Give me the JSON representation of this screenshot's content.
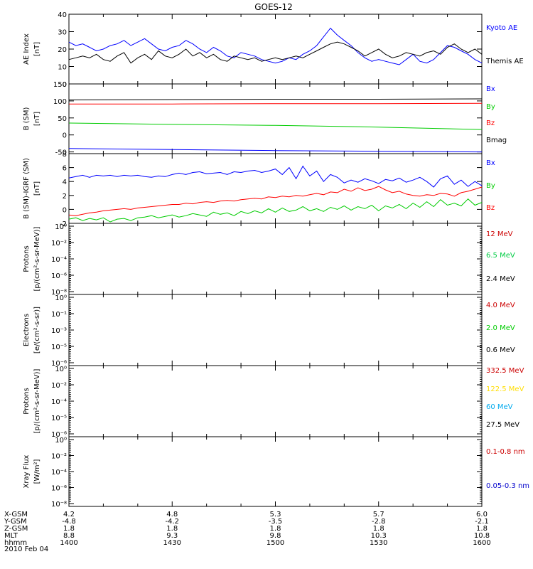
{
  "title": "GOES-12",
  "chart_data": [
    {
      "type": "line",
      "panel": "ae",
      "ylabel": "AE Index",
      "yunit": "[nT]",
      "ylim": [
        0,
        40
      ],
      "yticks": [
        0,
        10,
        20,
        30,
        40
      ],
      "legend_placement": "right",
      "x": [
        1400,
        1402,
        1404,
        1406,
        1408,
        1410,
        1412,
        1414,
        1416,
        1418,
        1420,
        1422,
        1424,
        1426,
        1428,
        1430,
        1432,
        1434,
        1436,
        1438,
        1440,
        1442,
        1444,
        1446,
        1448,
        1450,
        1452,
        1454,
        1456,
        1458,
        1500,
        1502,
        1504,
        1506,
        1508,
        1510,
        1512,
        1514,
        1516,
        1518,
        1520,
        1522,
        1524,
        1526,
        1528,
        1530,
        1532,
        1534,
        1536,
        1538,
        1540,
        1542,
        1544,
        1546,
        1548,
        1550,
        1552,
        1554,
        1556,
        1558,
        1600
      ],
      "series": [
        {
          "name": "Kyoto AE",
          "color": "#0000ff",
          "values": [
            24,
            22,
            23,
            21,
            19,
            20,
            22,
            23,
            25,
            22,
            24,
            26,
            23,
            20,
            19,
            21,
            22,
            25,
            23,
            20,
            18,
            21,
            19,
            16,
            15,
            18,
            17,
            16,
            14,
            13,
            12,
            13,
            15,
            14,
            17,
            19,
            22,
            27,
            32,
            28,
            25,
            22,
            18,
            15,
            13,
            14,
            13,
            12,
            11,
            14,
            17,
            13,
            12,
            14,
            18,
            22,
            21,
            19,
            17,
            14,
            12
          ]
        },
        {
          "name": "Themis AE",
          "color": "#000000",
          "values": [
            14,
            15,
            16,
            15,
            17,
            14,
            13,
            16,
            18,
            12,
            15,
            17,
            14,
            19,
            16,
            15,
            17,
            20,
            16,
            18,
            15,
            17,
            14,
            13,
            16,
            15,
            14,
            15,
            13,
            14,
            15,
            14,
            15,
            16,
            15,
            17,
            19,
            21,
            23,
            24,
            23,
            21,
            19,
            16,
            18,
            20,
            17,
            15,
            16,
            18,
            17,
            16,
            18,
            19,
            17,
            21,
            23,
            20,
            18,
            20,
            17
          ]
        }
      ]
    },
    {
      "type": "line",
      "panel": "b",
      "ylabel": "B (SM)",
      "yunit": "[nT]",
      "ylim": [
        -55,
        150
      ],
      "yticks": [
        -50,
        0,
        50,
        100,
        150
      ],
      "legend_placement": "right",
      "x": [
        1400,
        1430,
        1500,
        1530,
        1600
      ],
      "series": [
        {
          "name": "Bx",
          "color": "#0000ff",
          "values": [
            -40,
            -43,
            -46,
            -48,
            -50
          ]
        },
        {
          "name": "By",
          "color": "#00cc00",
          "values": [
            35,
            31,
            28,
            23,
            16
          ]
        },
        {
          "name": "Bz",
          "color": "#ff0000",
          "values": [
            91,
            91,
            92,
            92,
            93
          ]
        },
        {
          "name": "Bmag",
          "color": "#000000",
          "values": [
            103,
            104,
            105,
            105,
            106
          ]
        }
      ]
    },
    {
      "type": "line",
      "panel": "db",
      "ylabel": "B (SM)-IGRF (SM)",
      "yunit": "[nT]",
      "ylim": [
        -2,
        8
      ],
      "yticks": [
        -2,
        0,
        2,
        4,
        6,
        8
      ],
      "legend_placement": "right",
      "x": [
        1400,
        1402,
        1404,
        1406,
        1408,
        1410,
        1412,
        1414,
        1416,
        1418,
        1420,
        1422,
        1424,
        1426,
        1428,
        1430,
        1432,
        1434,
        1436,
        1438,
        1440,
        1442,
        1444,
        1446,
        1448,
        1450,
        1452,
        1454,
        1456,
        1458,
        1500,
        1502,
        1504,
        1506,
        1508,
        1510,
        1512,
        1514,
        1516,
        1518,
        1520,
        1522,
        1524,
        1526,
        1528,
        1530,
        1532,
        1534,
        1536,
        1538,
        1540,
        1542,
        1544,
        1546,
        1548,
        1550,
        1552,
        1554,
        1556,
        1558,
        1600
      ],
      "series": [
        {
          "name": "Bx",
          "color": "#0000ff",
          "values": [
            4.5,
            4.7,
            4.9,
            4.6,
            4.9,
            4.8,
            4.9,
            4.7,
            4.9,
            4.8,
            4.9,
            4.7,
            4.6,
            4.8,
            4.7,
            5.0,
            5.2,
            5.0,
            5.3,
            5.4,
            5.1,
            5.2,
            5.3,
            5.0,
            5.4,
            5.3,
            5.5,
            5.6,
            5.3,
            5.5,
            5.8,
            5.0,
            6.0,
            4.4,
            6.2,
            4.8,
            5.5,
            4.0,
            5.0,
            4.6,
            3.8,
            4.2,
            3.9,
            4.4,
            4.1,
            3.7,
            4.3,
            4.1,
            4.5,
            3.9,
            4.2,
            4.6,
            4.0,
            3.2,
            4.4,
            4.8,
            3.6,
            4.2,
            3.3,
            4.0,
            3.4
          ]
        },
        {
          "name": "By",
          "color": "#00cc00",
          "values": [
            -1.4,
            -1.2,
            -1.6,
            -1.3,
            -1.5,
            -1.2,
            -1.8,
            -1.4,
            -1.3,
            -1.6,
            -1.2,
            -1.1,
            -0.9,
            -1.2,
            -1.0,
            -0.8,
            -1.1,
            -0.9,
            -0.6,
            -0.8,
            -1.0,
            -0.4,
            -0.7,
            -0.5,
            -0.9,
            -0.3,
            -0.6,
            -0.2,
            -0.5,
            0.1,
            -0.4,
            0.2,
            -0.3,
            -0.1,
            0.4,
            -0.2,
            0.1,
            -0.3,
            0.3,
            0.0,
            0.5,
            -0.1,
            0.4,
            0.1,
            0.6,
            -0.2,
            0.5,
            0.2,
            0.7,
            0.1,
            0.9,
            0.3,
            1.1,
            0.4,
            1.4,
            0.6,
            0.9,
            0.5,
            1.5,
            0.6,
            1.0
          ]
        },
        {
          "name": "Bz",
          "color": "#ff0000",
          "values": [
            -0.8,
            -0.9,
            -0.7,
            -0.5,
            -0.4,
            -0.2,
            -0.1,
            0.0,
            0.1,
            0.0,
            0.2,
            0.3,
            0.4,
            0.5,
            0.6,
            0.7,
            0.7,
            0.9,
            0.8,
            1.0,
            1.1,
            1.0,
            1.2,
            1.3,
            1.2,
            1.4,
            1.5,
            1.6,
            1.5,
            1.8,
            1.7,
            1.9,
            1.8,
            2.0,
            1.9,
            2.1,
            2.3,
            2.1,
            2.5,
            2.4,
            2.9,
            2.6,
            3.1,
            2.7,
            2.9,
            3.3,
            2.8,
            2.4,
            2.6,
            2.2,
            2.0,
            1.9,
            2.1,
            2.0,
            2.3,
            2.2,
            1.9,
            2.4,
            2.6,
            2.9,
            3.2
          ]
        }
      ]
    },
    {
      "type": "line",
      "panel": "protons_low",
      "ylabel": "Protons",
      "yunit": "[p/(cm²-s-sr-MeV)]",
      "yscale": "log",
      "ylim": [
        1e-08,
        1
      ],
      "yticks": [
        "10⁰",
        "10⁻²",
        "10⁻⁴",
        "10⁻⁶",
        "10⁻⁸"
      ],
      "legend_placement": "right",
      "series": [
        {
          "name": "12 MeV",
          "color": "#cc0000",
          "values": []
        },
        {
          "name": "6.5 MeV",
          "color": "#00cc44",
          "values": []
        },
        {
          "name": "2.4 MeV",
          "color": "#000000",
          "values": []
        }
      ]
    },
    {
      "type": "line",
      "panel": "electrons",
      "ylabel": "Electrons",
      "yunit": "[e/(cm²-s-sr)]",
      "yscale": "log",
      "ylim": [
        1e-06,
        1
      ],
      "yticks": [
        "10⁰",
        "10⁻¹",
        "10⁻³",
        "10⁻⁵",
        "10⁻⁶"
      ],
      "legend_placement": "right",
      "series": [
        {
          "name": "4.0 MeV",
          "color": "#cc0000",
          "values": []
        },
        {
          "name": "2.0 MeV",
          "color": "#00cc00",
          "values": []
        },
        {
          "name": "0.6 MeV",
          "color": "#000000",
          "values": []
        }
      ]
    },
    {
      "type": "line",
      "panel": "protons_high",
      "ylabel": "Protons",
      "yunit": "[p/(cm²-s-sr-MeV)]",
      "yscale": "log",
      "ylim": [
        1e-06,
        1
      ],
      "yticks": [
        "10⁰",
        "10⁻²",
        "10⁻⁴",
        "10⁻⁵",
        "10⁻⁶"
      ],
      "legend_placement": "right",
      "series": [
        {
          "name": "332.5 MeV",
          "color": "#cc0000",
          "values": []
        },
        {
          "name": "122.5 MeV",
          "color": "#ffdd00",
          "values": []
        },
        {
          "name": "60 MeV",
          "color": "#00aaee",
          "values": []
        },
        {
          "name": "27.5 MeV",
          "color": "#000000",
          "values": []
        }
      ]
    },
    {
      "type": "line",
      "panel": "xray",
      "ylabel": "Xray Flux",
      "yunit": "[W/m²]",
      "yscale": "log",
      "ylim": [
        1e-08,
        1
      ],
      "yticks": [
        "10⁰",
        "10⁻²",
        "10⁻⁴",
        "10⁻⁶",
        "10⁻⁸"
      ],
      "legend_placement": "right",
      "series": [
        {
          "name": "0.1-0.8 nm",
          "color": "#cc0000",
          "values": []
        },
        {
          "name": "0.05-0.3 nm",
          "color": "#0000cc",
          "values": []
        }
      ]
    }
  ],
  "xaxis": {
    "rows": [
      {
        "label": "X-GSM",
        "values": [
          "4.2",
          "4.8",
          "5.3",
          "5.7",
          "6.0"
        ]
      },
      {
        "label": "Y-GSM",
        "values": [
          "-4.8",
          "-4.2",
          "-3.5",
          "-2.8",
          "-2.1"
        ]
      },
      {
        "label": "Z-GSM",
        "values": [
          "1.8",
          "1.8",
          "1.8",
          "1.8",
          "1.8"
        ]
      },
      {
        "label": "MLT",
        "values": [
          "8.8",
          "9.3",
          "9.8",
          "10.3",
          "10.8"
        ]
      },
      {
        "label": "hhmm",
        "values": [
          "1400",
          "1430",
          "1500",
          "1530",
          "1600"
        ]
      }
    ],
    "date": "2010 Feb 04"
  }
}
